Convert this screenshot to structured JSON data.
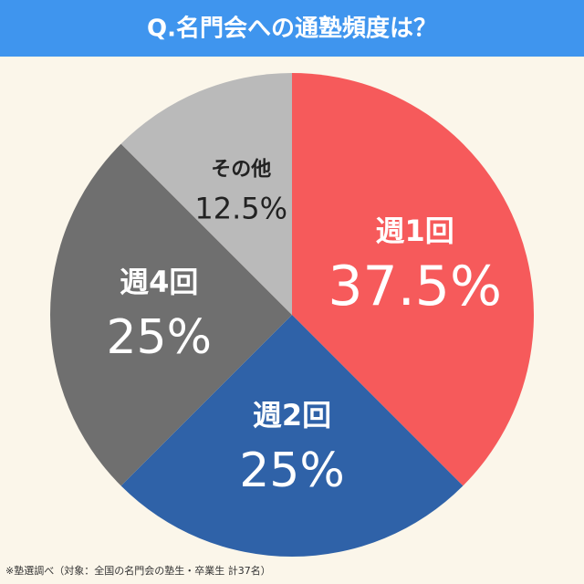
{
  "chart_data": {
    "type": "pie",
    "title": "Q.名門会への通塾頻度は？",
    "categories": [
      "週1回",
      "週2回",
      "週4回",
      "その他"
    ],
    "values": [
      37.5,
      25,
      25,
      12.5
    ],
    "value_labels": [
      "37.5%",
      "25%",
      "25%",
      "12.5%"
    ],
    "colors": [
      "#f65a5b",
      "#2f62a8",
      "#6f6f6f",
      "#bababa"
    ],
    "note": "※塾選調べ（対象：全国の名門会の塾生・卒業生 計37名）"
  }
}
